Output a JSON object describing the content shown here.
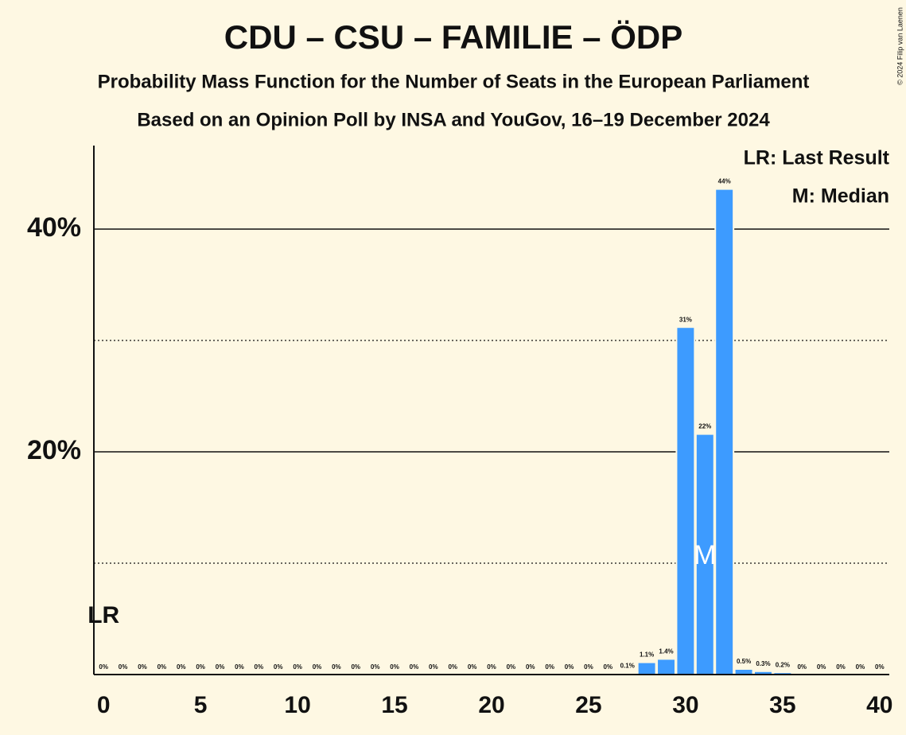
{
  "chart_data": {
    "type": "bar",
    "title": "CDU – CSU – FAMILIE – ÖDP",
    "subtitle": "Probability Mass Function for the Number of Seats in the European Parliament",
    "subtitle2": "Based on an Opinion Poll by INSA and YouGov, 16–19 December 2024",
    "credit": "© 2024 Filip van Laenen",
    "x": [
      0,
      1,
      2,
      3,
      4,
      5,
      6,
      7,
      8,
      9,
      10,
      11,
      12,
      13,
      14,
      15,
      16,
      17,
      18,
      19,
      20,
      21,
      22,
      23,
      24,
      25,
      26,
      27,
      28,
      29,
      30,
      31,
      32,
      33,
      34,
      35,
      36,
      37,
      38,
      39,
      40
    ],
    "values": [
      0,
      0,
      0,
      0,
      0,
      0,
      0,
      0,
      0,
      0,
      0,
      0,
      0,
      0,
      0,
      0,
      0,
      0,
      0,
      0,
      0,
      0,
      0,
      0,
      0,
      0,
      0,
      0.1,
      1.1,
      1.4,
      31.2,
      21.6,
      43.6,
      0.5,
      0.3,
      0.2,
      0,
      0,
      0,
      0,
      0
    ],
    "value_labels": [
      "0%",
      "0%",
      "0%",
      "0%",
      "0%",
      "0%",
      "0%",
      "0%",
      "0%",
      "0%",
      "0%",
      "0%",
      "0%",
      "0%",
      "0%",
      "0%",
      "0%",
      "0%",
      "0%",
      "0%",
      "0%",
      "0%",
      "0%",
      "0%",
      "0%",
      "0%",
      "0%",
      "0.1%",
      "1.1%",
      "1.4%",
      "31%",
      "22%",
      "44%",
      "0.5%",
      "0.3%",
      "0.2%",
      "0%",
      "0%",
      "0%",
      "0%",
      "0%"
    ],
    "color": "#3d9bff",
    "xlim": [
      -0.5,
      40.5
    ],
    "xticks": [
      0,
      5,
      10,
      15,
      20,
      25,
      30,
      35,
      40
    ],
    "ylim": [
      0,
      47.5
    ],
    "yticks": [
      {
        "value": 20,
        "label": "20%"
      },
      {
        "value": 40,
        "label": "40%"
      }
    ],
    "minor_yticks": [
      10,
      30
    ],
    "grid": true,
    "last_result": 0,
    "last_result_label": "LR",
    "median": 31,
    "median_label": "M",
    "legend": [
      "LR: Last Result",
      "M: Median"
    ]
  }
}
